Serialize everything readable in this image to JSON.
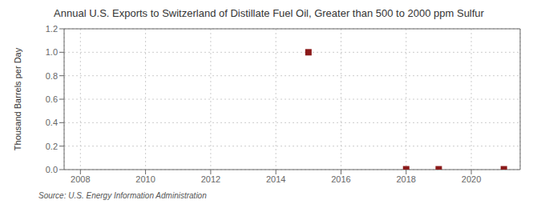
{
  "chart_data": {
    "type": "scatter",
    "title": "Annual U.S. Exports to Switzerland of Distillate Fuel Oil, Greater than 500 to 2000 ppm Sulfur",
    "ylabel": "Thousand Barrels per Day",
    "source": "Source: U.S. Energy Information Administration",
    "x": [
      2015,
      2018,
      2019,
      2021
    ],
    "values": [
      1.0,
      0.003,
      0.003,
      0.003
    ],
    "color": "#8b1a1a",
    "marker": "square",
    "xlim": [
      2007.5,
      2021.5
    ],
    "ylim": [
      0.0,
      1.2
    ],
    "xticks": [
      2008,
      2010,
      2012,
      2014,
      2016,
      2018,
      2020
    ],
    "yticks": [
      {
        "value": 0,
        "label": "0.0"
      },
      0.2,
      0.4,
      0.6,
      0.8,
      {
        "value": 1,
        "label": "1.0"
      },
      1.2
    ],
    "grid": true
  }
}
